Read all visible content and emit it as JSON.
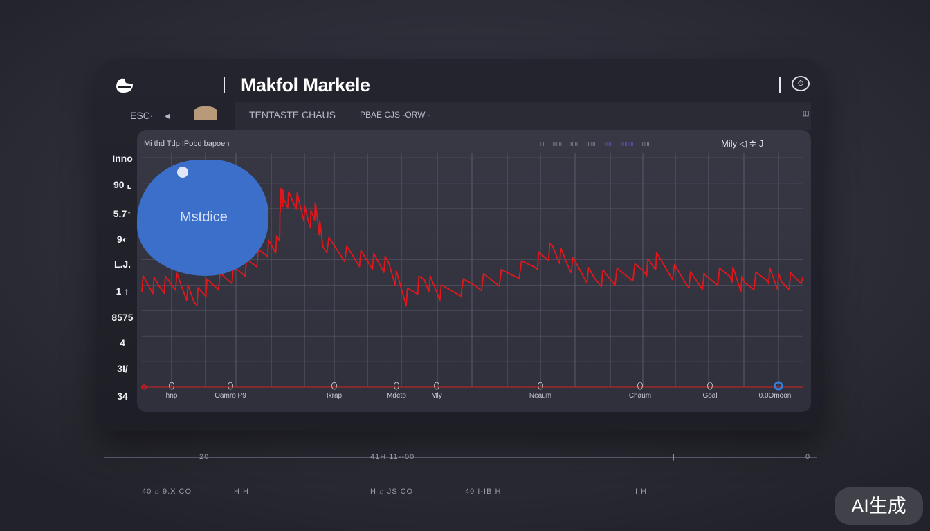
{
  "header": {
    "title": "Makfol Markele",
    "logo_icon": "logo-icon",
    "settings_icon": "clock-icon"
  },
  "tabs": {
    "left": "ESC·",
    "arrow": "◂",
    "tab1": "TENTASTE CHAUS",
    "tab2": "PBAE CJS -ORW ·",
    "right_icon": "panel-icon"
  },
  "chart_data": {
    "type": "line",
    "title": "Mi thd Tdp IPobd bapoen",
    "legend_items": [
      "III",
      "IIIIII",
      "IIIII",
      "IIIIIII",
      "IIIII",
      "IIIIIIII",
      "IIIII"
    ],
    "legend_right": "Mily ◁ ≑ J",
    "ytick_labels": [
      "Inno",
      "90 ⌞",
      "5.7↑",
      "9◐",
      "L.J.",
      "1 ↑",
      "8575",
      "4",
      "3I/",
      "34"
    ],
    "xtick_labels": [
      "hnp",
      "Oamro P9",
      "Ikrap",
      "Mdeto",
      "Mly",
      "Neaum",
      "Chaum",
      "Goal",
      "0.0Omoon"
    ],
    "bubble_label": "Mstdice",
    "series": [
      {
        "color": "#e3171b",
        "x": [
          0,
          2.6,
          5.3,
          7.9,
          10,
          13.2,
          16.3,
          18.9,
          20.8,
          21.0,
          21.5,
          23.5,
          25.3,
          26.3,
          27.4,
          31.6,
          34.7,
          37.4,
          40,
          42.7,
          45.3,
          50.5,
          54.7,
          59.5,
          62.1,
          64.7,
          68.4,
          71.6,
          75.8,
          77.9,
          82.1,
          85.3,
          89,
          91.1,
          94.7,
          96.8,
          100
        ],
        "y": [
          45,
          44,
          46,
          38,
          44,
          48,
          53,
          60,
          63,
          83,
          82,
          81,
          72,
          77,
          63,
          57,
          55,
          53,
          39,
          47,
          41,
          45,
          48,
          54,
          60,
          54,
          47,
          48,
          51,
          55,
          47,
          46,
          50,
          44,
          49,
          45,
          48
        ]
      }
    ],
    "ylim": [
      0,
      100
    ],
    "grid": true
  },
  "footer": {
    "row1": [
      "20",
      "41H 11--00",
      "|",
      "0"
    ],
    "row2": [
      "40 ⌂ 9.X CO",
      "H H",
      "H ⌂ JS CO",
      "40 I-IB H",
      "I H"
    ]
  },
  "watermark": "AI生成",
  "colors": {
    "line": "#e3171b",
    "bubble": "#3b6fc9",
    "marker": "#2f7fe0"
  }
}
